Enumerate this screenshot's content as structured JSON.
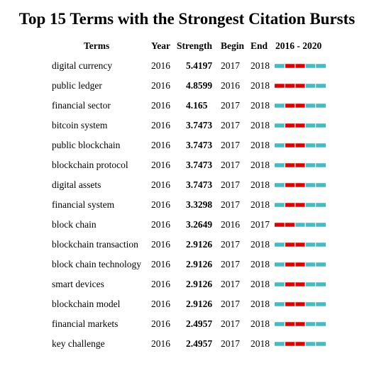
{
  "title": "Top 15 Terms with the Strongest Citation Bursts",
  "headers": {
    "terms": "Terms",
    "year": "Year",
    "strength": "Strength",
    "begin": "Begin",
    "end": "End",
    "range": "2016 - 2020"
  },
  "colors": {
    "burst": "#e00000",
    "baseline": "#40bcc4"
  },
  "chart_data": {
    "type": "table",
    "title": "Top 15 Terms with the Strongest Citation Bursts",
    "range_start": 2016,
    "range_end": 2020,
    "columns": [
      "Terms",
      "Year",
      "Strength",
      "Begin",
      "End",
      "2016 - 2020"
    ],
    "rows": [
      {
        "term": "digital currency",
        "year": "2016",
        "strength": "5.4197",
        "begin": "2017",
        "end": "2018"
      },
      {
        "term": "public ledger",
        "year": "2016",
        "strength": "4.8599",
        "begin": "2016",
        "end": "2018"
      },
      {
        "term": "financial sector",
        "year": "2016",
        "strength": "4.165",
        "begin": "2017",
        "end": "2018"
      },
      {
        "term": "bitcoin system",
        "year": "2016",
        "strength": "3.7473",
        "begin": "2017",
        "end": "2018"
      },
      {
        "term": "public blockchain",
        "year": "2016",
        "strength": "3.7473",
        "begin": "2017",
        "end": "2018"
      },
      {
        "term": "blockchain protocol",
        "year": "2016",
        "strength": "3.7473",
        "begin": "2017",
        "end": "2018"
      },
      {
        "term": "digital assets",
        "year": "2016",
        "strength": "3.7473",
        "begin": "2017",
        "end": "2018"
      },
      {
        "term": "financial system",
        "year": "2016",
        "strength": "3.3298",
        "begin": "2017",
        "end": "2018"
      },
      {
        "term": "block chain",
        "year": "2016",
        "strength": "3.2649",
        "begin": "2016",
        "end": "2017"
      },
      {
        "term": "blockchain transaction",
        "year": "2016",
        "strength": "2.9126",
        "begin": "2017",
        "end": "2018"
      },
      {
        "term": "block chain technology",
        "year": "2016",
        "strength": "2.9126",
        "begin": "2017",
        "end": "2018"
      },
      {
        "term": "smart devices",
        "year": "2016",
        "strength": "2.9126",
        "begin": "2017",
        "end": "2018"
      },
      {
        "term": "blockchain model",
        "year": "2016",
        "strength": "2.9126",
        "begin": "2017",
        "end": "2018"
      },
      {
        "term": "financial markets",
        "year": "2016",
        "strength": "2.4957",
        "begin": "2017",
        "end": "2018"
      },
      {
        "term": "key challenge",
        "year": "2016",
        "strength": "2.4957",
        "begin": "2017",
        "end": "2018"
      }
    ]
  }
}
